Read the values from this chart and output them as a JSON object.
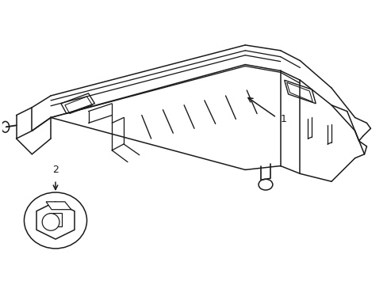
{
  "background_color": "#ffffff",
  "line_color": "#1a1a1a",
  "line_width": 1.1,
  "fig_width": 4.89,
  "fig_height": 3.6,
  "label1_text": "1",
  "label2_text": "2"
}
